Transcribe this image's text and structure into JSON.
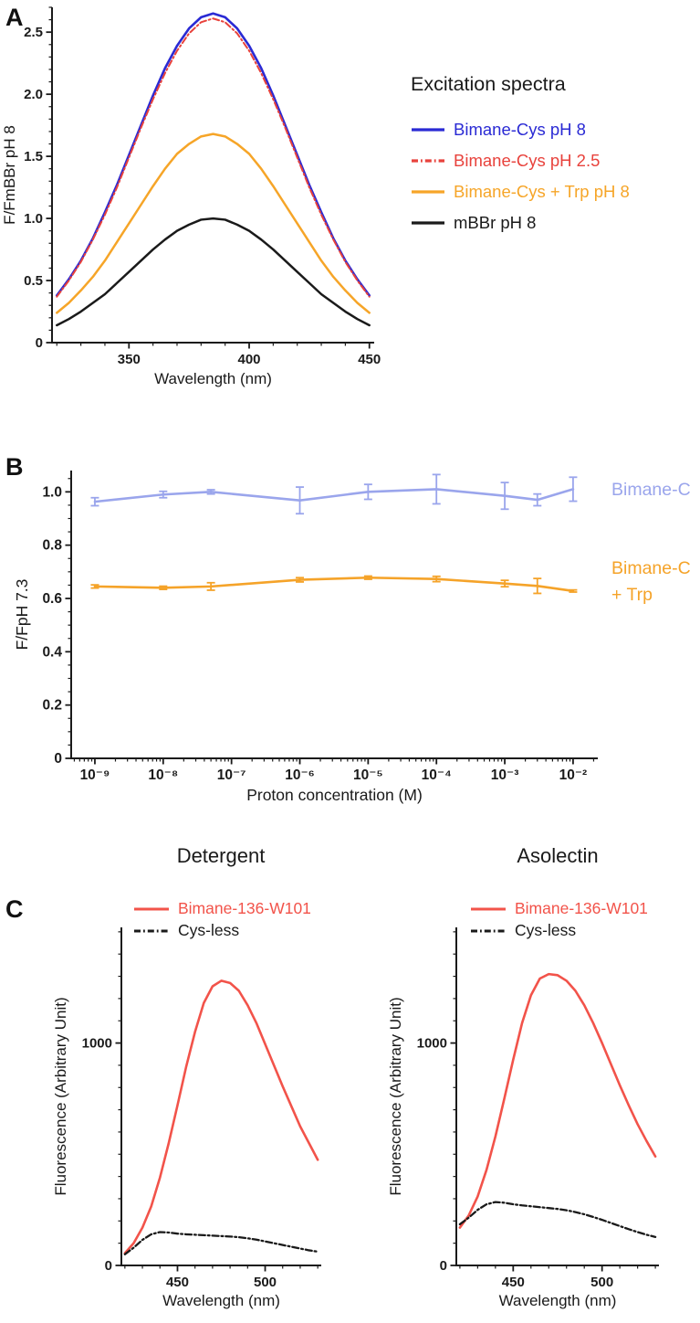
{
  "panels": {
    "a": {
      "letter": "A",
      "legend": {
        "title": "Excitation spectra",
        "entries": [
          {
            "label": "Bimane-Cys pH 8",
            "color": "#2a2ad4",
            "style": "solid"
          },
          {
            "label": "Bimane-Cys pH 2.5",
            "color": "#e8423c",
            "style": "dashdot"
          },
          {
            "label": "Bimane-Cys + Trp pH 8",
            "color": "#f6a528",
            "style": "solid"
          },
          {
            "label": "mBBr pH 8",
            "color": "#1a1a1a",
            "style": "solid"
          }
        ]
      }
    },
    "b": {
      "letter": "B",
      "right_labels": [
        {
          "lines": [
            "Bimane-C"
          ],
          "color": "#9aa5ec"
        },
        {
          "lines": [
            "Bimane-C",
            "+ Trp"
          ],
          "color": "#f5a329"
        }
      ]
    },
    "c": {
      "letter": "C",
      "titles": [
        "Detergent",
        "Asolectin"
      ],
      "legend_entries": [
        {
          "label": "Bimane-136-W101",
          "color": "#f2534a",
          "style": "solid"
        },
        {
          "label": "Cys-less",
          "color": "#1a1a1a",
          "style": "dashdot"
        }
      ]
    }
  },
  "chart_data": [
    {
      "id": "a",
      "type": "line",
      "xlabel": "Wavelength (nm)",
      "ylabel": "F/FmBBr pH 8",
      "xscale": "linear",
      "xlim": [
        318,
        452
      ],
      "ylim": [
        0,
        2.7
      ],
      "xticks": {
        "major": [
          350,
          400,
          450
        ],
        "labels": [
          "350",
          "400",
          "450"
        ],
        "minor_step": 10
      },
      "yticks": {
        "major": [
          0,
          0.5,
          1.0,
          1.5,
          2.0,
          2.5
        ],
        "labels": [
          "0",
          "0.5",
          "1.0",
          "1.5",
          "2.0",
          "2.5"
        ],
        "minor_step": 0.1
      },
      "x": [
        320,
        325,
        330,
        335,
        340,
        345,
        350,
        355,
        360,
        365,
        370,
        375,
        380,
        385,
        390,
        395,
        400,
        405,
        410,
        415,
        420,
        425,
        430,
        435,
        440,
        445,
        450
      ],
      "series": [
        {
          "name": "mBBr pH 8",
          "color": "#1a1a1a",
          "style": "solid",
          "width": 2.5,
          "values": [
            0.14,
            0.19,
            0.25,
            0.32,
            0.39,
            0.48,
            0.57,
            0.66,
            0.75,
            0.83,
            0.9,
            0.95,
            0.99,
            1.0,
            0.99,
            0.95,
            0.9,
            0.83,
            0.75,
            0.66,
            0.57,
            0.48,
            0.39,
            0.32,
            0.25,
            0.19,
            0.14
          ]
        },
        {
          "name": "Bimane-Cys + Trp pH 8",
          "color": "#f6a528",
          "style": "solid",
          "width": 2.5,
          "values": [
            0.24,
            0.32,
            0.42,
            0.53,
            0.66,
            0.81,
            0.96,
            1.11,
            1.26,
            1.4,
            1.52,
            1.6,
            1.66,
            1.68,
            1.66,
            1.6,
            1.52,
            1.4,
            1.26,
            1.11,
            0.96,
            0.81,
            0.66,
            0.53,
            0.42,
            0.32,
            0.24
          ]
        },
        {
          "name": "Bimane-Cys pH 8",
          "color": "#2a2ad4",
          "style": "solid",
          "width": 2.6,
          "values": [
            0.38,
            0.51,
            0.66,
            0.84,
            1.05,
            1.27,
            1.51,
            1.75,
            1.99,
            2.21,
            2.39,
            2.53,
            2.62,
            2.65,
            2.62,
            2.53,
            2.39,
            2.21,
            1.99,
            1.75,
            1.51,
            1.27,
            1.05,
            0.84,
            0.66,
            0.51,
            0.38
          ]
        },
        {
          "name": "Bimane-Cys pH 2.5",
          "color": "#e8423c",
          "style": "dashdot",
          "width": 2.0,
          "values": [
            0.37,
            0.5,
            0.65,
            0.83,
            1.03,
            1.25,
            1.49,
            1.73,
            1.96,
            2.17,
            2.35,
            2.49,
            2.58,
            2.61,
            2.58,
            2.49,
            2.35,
            2.17,
            1.96,
            1.73,
            1.49,
            1.25,
            1.03,
            0.83,
            0.65,
            0.5,
            0.37
          ]
        }
      ]
    },
    {
      "id": "b",
      "type": "line",
      "xlabel": "Proton concentration (M)",
      "ylabel": "F/FpH 7.3",
      "xscale": "log",
      "xlim": [
        4.5e-10,
        0.023
      ],
      "ylim": [
        0,
        1.08
      ],
      "xticks": {
        "major": [
          1e-09,
          1e-08,
          1e-07,
          1e-06,
          1e-05,
          0.0001,
          0.001,
          0.01
        ],
        "labels": [
          "10⁻⁹",
          "10⁻⁸",
          "10⁻⁷",
          "10⁻⁶",
          "10⁻⁵",
          "10⁻⁴",
          "10⁻³",
          "10⁻²"
        ],
        "log_minors": true
      },
      "yticks": {
        "major": [
          0,
          0.2,
          0.4,
          0.6,
          0.8,
          1.0
        ],
        "labels": [
          "0",
          "0.2",
          "0.4",
          "0.6",
          "0.8",
          "1.0"
        ],
        "minor_step": 0.05
      },
      "series": [
        {
          "name": "Bimane-Cys",
          "color": "#9aa5ec",
          "style": "solid",
          "width": 2.6,
          "x": [
            1e-09,
            1e-08,
            5e-08,
            1e-06,
            1e-05,
            0.0001,
            0.001,
            0.003,
            0.01
          ],
          "values": [
            0.963,
            0.99,
            1.0,
            0.968,
            1.0,
            1.01,
            0.985,
            0.97,
            1.01
          ],
          "yerr": [
            0.015,
            0.012,
            0.008,
            0.05,
            0.028,
            0.055,
            0.05,
            0.022,
            0.045
          ]
        },
        {
          "name": "Bimane-Cys + Trp",
          "color": "#f5a329",
          "style": "solid",
          "width": 2.6,
          "x": [
            1e-09,
            1e-08,
            5e-08,
            1e-06,
            1e-05,
            0.0001,
            0.001,
            0.003,
            0.01
          ],
          "values": [
            0.645,
            0.64,
            0.645,
            0.67,
            0.678,
            0.673,
            0.656,
            0.647,
            0.628
          ],
          "yerr": [
            0.006,
            0.006,
            0.014,
            0.008,
            0.006,
            0.01,
            0.012,
            0.028,
            0.004
          ]
        }
      ]
    },
    {
      "id": "c1",
      "type": "line",
      "title": "Detergent",
      "xlabel": "Wavelength (nm)",
      "ylabel": "Fluorescence (Arbitrary Unit)",
      "xscale": "linear",
      "xlim": [
        418,
        532
      ],
      "ylim": [
        0,
        1520
      ],
      "xticks": {
        "major": [
          450,
          500
        ],
        "labels": [
          "450",
          "500"
        ],
        "minor_step": 10
      },
      "yticks": {
        "major": [
          0,
          1000
        ],
        "labels": [
          "0",
          "1000"
        ],
        "minor_step": 100
      },
      "x": [
        420,
        425,
        430,
        435,
        440,
        445,
        450,
        455,
        460,
        465,
        470,
        475,
        480,
        485,
        490,
        495,
        500,
        505,
        510,
        515,
        520,
        525,
        530
      ],
      "series": [
        {
          "name": "Bimane-136-W101",
          "color": "#f2534a",
          "style": "solid",
          "width": 2.6,
          "values": [
            55,
            100,
            170,
            265,
            395,
            550,
            720,
            895,
            1050,
            1180,
            1255,
            1280,
            1270,
            1235,
            1170,
            1090,
            995,
            900,
            805,
            715,
            625,
            550,
            475
          ]
        },
        {
          "name": "Cys-less",
          "color": "#1a1a1a",
          "style": "dashdot",
          "width": 2.3,
          "values": [
            50,
            80,
            115,
            140,
            150,
            148,
            143,
            140,
            138,
            136,
            134,
            132,
            130,
            127,
            122,
            116,
            108,
            100,
            92,
            84,
            76,
            68,
            62
          ]
        }
      ]
    },
    {
      "id": "c2",
      "type": "line",
      "title": "Asolectin",
      "xlabel": "Wavelength (nm)",
      "ylabel": "Fluorescence (Arbitrary Unit)",
      "xscale": "linear",
      "xlim": [
        418,
        532
      ],
      "ylim": [
        0,
        1520
      ],
      "xticks": {
        "major": [
          450,
          500
        ],
        "labels": [
          "450",
          "500"
        ],
        "minor_step": 10
      },
      "yticks": {
        "major": [
          0,
          1000
        ],
        "labels": [
          "0",
          "1000"
        ],
        "minor_step": 100
      },
      "x": [
        420,
        425,
        430,
        435,
        440,
        445,
        450,
        455,
        460,
        465,
        470,
        475,
        480,
        485,
        490,
        495,
        500,
        505,
        510,
        515,
        520,
        525,
        530
      ],
      "series": [
        {
          "name": "Bimane-136-W101",
          "color": "#f2534a",
          "style": "solid",
          "width": 2.6,
          "values": [
            170,
            225,
            310,
            430,
            580,
            750,
            925,
            1090,
            1215,
            1290,
            1310,
            1305,
            1280,
            1235,
            1170,
            1090,
            1000,
            905,
            810,
            720,
            635,
            560,
            490
          ]
        },
        {
          "name": "Cys-less",
          "color": "#1a1a1a",
          "style": "dashdot",
          "width": 2.3,
          "values": [
            185,
            215,
            250,
            275,
            285,
            282,
            275,
            270,
            266,
            262,
            258,
            254,
            248,
            240,
            230,
            218,
            205,
            191,
            177,
            163,
            150,
            138,
            128
          ]
        }
      ]
    }
  ]
}
